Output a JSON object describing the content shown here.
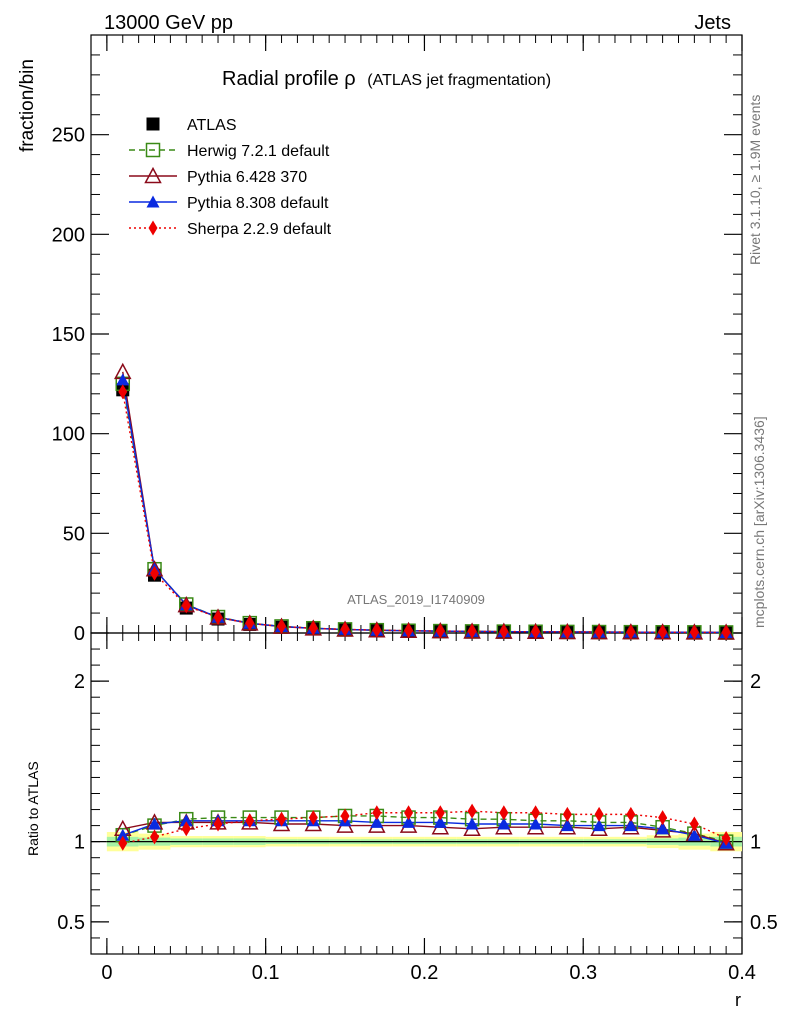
{
  "header": {
    "energy": "13000 GeV pp",
    "category": "Jets",
    "title_main": "Radial profile",
    "title_symbol": "ρ",
    "title_note": "(ATLAS jet fragmentation)",
    "side_rivet": "Rivet 3.1.10, ≥ 1.9M events",
    "side_mcplots": "mcplots.cern.ch [arXiv:1306.3436]",
    "analysis_id": "ATLAS_2019_I1740909"
  },
  "chart_data": [
    {
      "type": "line",
      "panel": "main",
      "ylabel": "fraction/bin",
      "xlabel": "",
      "ylim": [
        0,
        300
      ],
      "xlim": [
        -0.01,
        0.4
      ],
      "yticks": [
        0,
        50,
        100,
        150,
        200,
        250
      ],
      "ytick_labels": [
        "0",
        "50",
        "100",
        "150",
        "200",
        "250"
      ],
      "legend_placement": "top-left",
      "x": [
        0.01,
        0.03,
        0.05,
        0.07,
        0.09,
        0.11,
        0.13,
        0.15,
        0.17,
        0.19,
        0.21,
        0.23,
        0.25,
        0.27,
        0.29,
        0.31,
        0.33,
        0.35,
        0.37,
        0.39
      ],
      "series": [
        {
          "name": "ATLAS",
          "color": "#000000",
          "marker": "square-filled",
          "style": "points",
          "values": [
            122,
            29,
            12.5,
            7,
            4.3,
            2.9,
            2.1,
            1.6,
            1.25,
            1.0,
            0.85,
            0.72,
            0.62,
            0.55,
            0.48,
            0.43,
            0.38,
            0.34,
            0.31,
            0.28
          ]
        },
        {
          "name": "Herwig 7.2.1 default",
          "color": "#3a8a16",
          "marker": "square-open",
          "style": "dashed",
          "values": [
            125,
            32,
            14.3,
            8.0,
            4.95,
            3.3,
            2.4,
            1.82,
            1.42,
            1.13,
            0.96,
            0.81,
            0.7,
            0.62,
            0.54,
            0.48,
            0.42,
            0.37,
            0.33,
            0.28
          ]
        },
        {
          "name": "Pythia 6.428 370",
          "color": "#8b0a1a",
          "marker": "triangle-open",
          "style": "solid",
          "values": [
            131,
            32,
            14,
            7.8,
            4.8,
            3.2,
            2.3,
            1.75,
            1.37,
            1.1,
            0.93,
            0.78,
            0.68,
            0.6,
            0.53,
            0.47,
            0.42,
            0.37,
            0.33,
            0.28
          ]
        },
        {
          "name": "Pythia 8.308 default",
          "color": "#0a2ae0",
          "marker": "triangle-filled",
          "style": "solid",
          "values": [
            127,
            32,
            14.2,
            7.9,
            4.9,
            3.27,
            2.37,
            1.8,
            1.4,
            1.12,
            0.95,
            0.8,
            0.69,
            0.61,
            0.53,
            0.47,
            0.42,
            0.37,
            0.33,
            0.28
          ]
        },
        {
          "name": "Sherpa 2.2.9 default",
          "color": "#ee0000",
          "marker": "diamond-filled",
          "style": "dotted",
          "values": [
            121,
            30,
            13.6,
            7.8,
            4.9,
            3.3,
            2.4,
            1.85,
            1.46,
            1.17,
            0.99,
            0.85,
            0.72,
            0.64,
            0.56,
            0.5,
            0.44,
            0.39,
            0.34,
            0.28
          ]
        }
      ]
    },
    {
      "type": "line",
      "panel": "ratio",
      "ylabel": "Ratio to ATLAS",
      "xlabel": "r",
      "ylim": [
        0.3,
        2.3
      ],
      "xlim": [
        -0.01,
        0.4
      ],
      "yticks": [
        0.5,
        1,
        2
      ],
      "ytick_labels": [
        "0.5",
        "1",
        "2"
      ],
      "xticks": [
        0,
        0.1,
        0.2,
        0.3,
        0.4
      ],
      "xtick_labels": [
        "0",
        "0.1",
        "0.2",
        "0.3",
        "0.4"
      ],
      "x": [
        0.01,
        0.03,
        0.05,
        0.07,
        0.09,
        0.11,
        0.13,
        0.15,
        0.17,
        0.19,
        0.21,
        0.23,
        0.25,
        0.27,
        0.29,
        0.31,
        0.33,
        0.35,
        0.37,
        0.39
      ],
      "band": {
        "yellow_halfwidth": [
          0.06,
          0.05,
          0.035,
          0.035,
          0.035,
          0.03,
          0.03,
          0.03,
          0.03,
          0.03,
          0.03,
          0.03,
          0.03,
          0.03,
          0.03,
          0.03,
          0.03,
          0.04,
          0.05,
          0.06
        ],
        "green_halfwidth": [
          0.03,
          0.025,
          0.02,
          0.02,
          0.02,
          0.015,
          0.015,
          0.015,
          0.015,
          0.015,
          0.015,
          0.015,
          0.015,
          0.015,
          0.015,
          0.015,
          0.015,
          0.02,
          0.025,
          0.03
        ]
      },
      "series": [
        {
          "name": "Herwig 7.2.1 default",
          "color": "#3a8a16",
          "marker": "square-open",
          "style": "dashed",
          "values": [
            1.04,
            1.1,
            1.14,
            1.15,
            1.15,
            1.15,
            1.15,
            1.16,
            1.16,
            1.15,
            1.15,
            1.14,
            1.14,
            1.13,
            1.13,
            1.12,
            1.12,
            1.09,
            1.05,
            1.0
          ]
        },
        {
          "name": "Pythia 6.428 370",
          "color": "#8b0a1a",
          "marker": "triangle-open",
          "style": "solid",
          "values": [
            1.08,
            1.12,
            1.12,
            1.12,
            1.12,
            1.11,
            1.11,
            1.1,
            1.1,
            1.1,
            1.09,
            1.08,
            1.09,
            1.09,
            1.09,
            1.08,
            1.09,
            1.07,
            1.05,
            0.99
          ]
        },
        {
          "name": "Pythia 8.308 default",
          "color": "#0a2ae0",
          "marker": "triangle-filled",
          "style": "solid",
          "values": [
            1.04,
            1.11,
            1.13,
            1.13,
            1.13,
            1.13,
            1.13,
            1.13,
            1.12,
            1.12,
            1.12,
            1.11,
            1.11,
            1.11,
            1.1,
            1.1,
            1.1,
            1.08,
            1.04,
            0.99
          ]
        },
        {
          "name": "Sherpa 2.2.9 default",
          "color": "#ee0000",
          "marker": "diamond-filled",
          "style": "dotted",
          "values": [
            0.99,
            1.03,
            1.08,
            1.11,
            1.13,
            1.14,
            1.15,
            1.16,
            1.18,
            1.18,
            1.18,
            1.19,
            1.18,
            1.18,
            1.17,
            1.17,
            1.17,
            1.15,
            1.11,
            1.02
          ]
        }
      ]
    }
  ]
}
